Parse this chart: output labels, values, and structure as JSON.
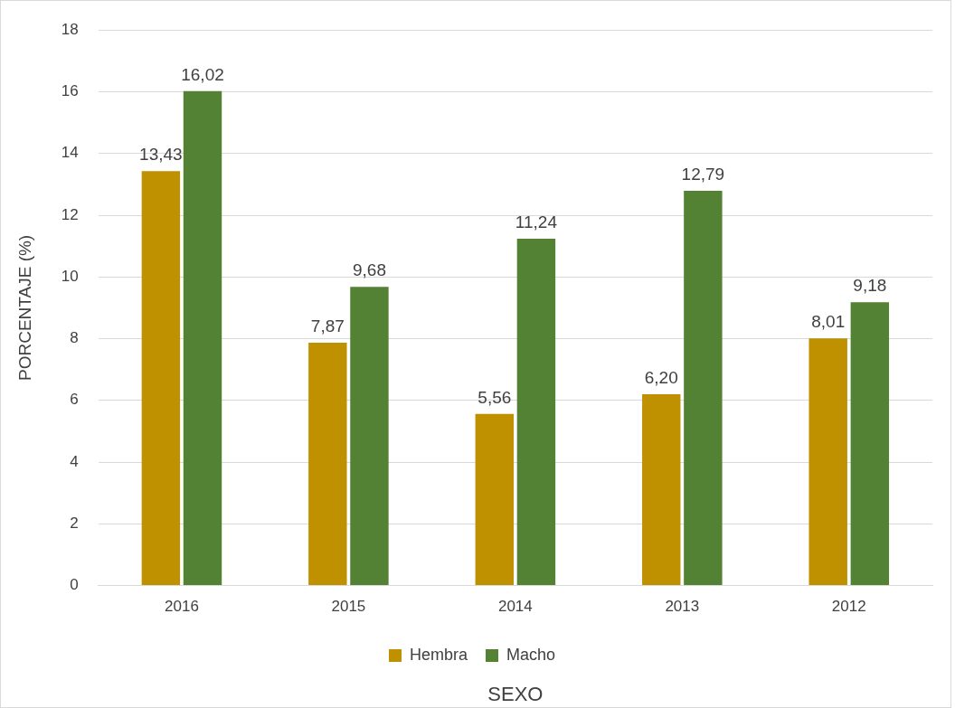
{
  "chart_data": {
    "type": "bar",
    "xlabel": "SEXO",
    "ylabel": "PORCENTAJE (%)",
    "categories": [
      "2016",
      "2015",
      "2014",
      "2013",
      "2012"
    ],
    "series": [
      {
        "name": "Hembra",
        "color": "#bf9000",
        "values": [
          13.43,
          7.87,
          5.56,
          6.2,
          8.01
        ],
        "value_labels": [
          "13,43",
          "7,87",
          "5,56",
          "6,20",
          "8,01"
        ]
      },
      {
        "name": "Macho",
        "color": "#548235",
        "values": [
          16.02,
          9.68,
          11.24,
          12.79,
          9.18
        ],
        "value_labels": [
          "16,02",
          "9,68",
          "11,24",
          "12,79",
          "9,18"
        ]
      }
    ],
    "ylim": [
      0,
      18
    ],
    "yticks": [
      0,
      2,
      4,
      6,
      8,
      10,
      12,
      14,
      16,
      18
    ],
    "grid": "y",
    "legend": "bottom"
  }
}
